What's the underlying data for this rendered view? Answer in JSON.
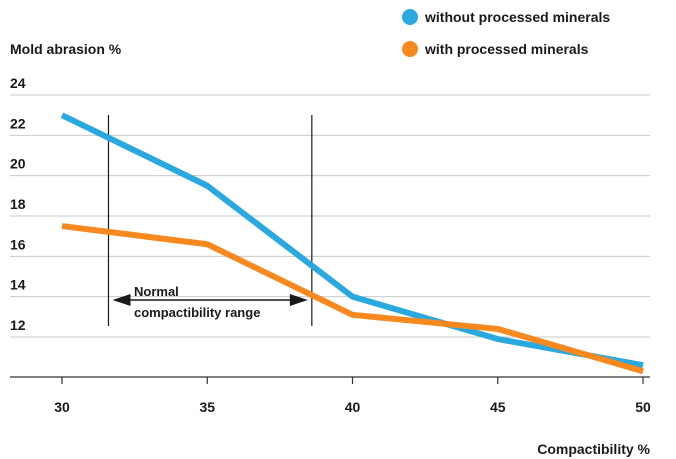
{
  "chart_data": {
    "type": "line",
    "ylabel": "Mold abrasion %",
    "xlabel": "Compactibility %",
    "xlim": [
      30,
      50
    ],
    "ylim": [
      11,
      24
    ],
    "xticks": [
      "30",
      "35",
      "40",
      "45",
      "50"
    ],
    "yticks": [
      "12",
      "14",
      "16",
      "18",
      "20",
      "22",
      "24"
    ],
    "grid": "horizontal",
    "legend_position": "top-right",
    "series": [
      {
        "name": "without processed minerals",
        "color": "#2aa8e0",
        "x": [
          30,
          35,
          40,
          45,
          50
        ],
        "y": [
          23.0,
          19.5,
          14.0,
          11.9,
          10.6
        ]
      },
      {
        "name": "with processed minerals",
        "color": "#f7891f",
        "x": [
          30,
          35,
          40,
          45,
          50
        ],
        "y": [
          17.5,
          16.6,
          13.1,
          12.4,
          10.3
        ]
      }
    ],
    "annotations": {
      "range_lines": [
        31.6,
        38.6
      ],
      "range_label_line1": "Normal",
      "range_label_line2": "compactibility range"
    }
  }
}
